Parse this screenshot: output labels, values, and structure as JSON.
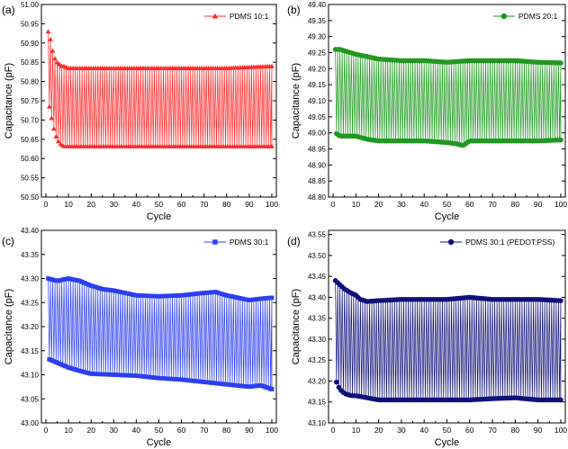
{
  "chart_data": [
    {
      "type": "line",
      "panel_label": "(a)",
      "title": "",
      "xlabel": "Cycle",
      "ylabel": "Capacitance (pF)",
      "xlim": [
        -2,
        102
      ],
      "ylim": [
        50.5,
        51.0
      ],
      "xticks": [
        "0",
        "10",
        "20",
        "30",
        "40",
        "50",
        "60",
        "70",
        "80",
        "90",
        "100"
      ],
      "yticks": [
        "50.50",
        "50.55",
        "50.60",
        "50.65",
        "50.70",
        "50.75",
        "50.80",
        "50.85",
        "50.90",
        "50.95",
        "51.00"
      ],
      "legend": "PDMS 10:1",
      "color": "#ff2a2a",
      "marker": "triangle",
      "series": [
        {
          "name": "peak (upper)",
          "x": [
            1,
            2,
            3,
            4,
            5,
            6,
            7,
            8,
            10,
            15,
            20,
            40,
            60,
            80,
            100
          ],
          "values": [
            50.93,
            50.91,
            50.88,
            50.86,
            50.85,
            50.845,
            50.84,
            50.84,
            50.835,
            50.835,
            50.835,
            50.835,
            50.835,
            50.835,
            50.84
          ]
        },
        {
          "name": "valley (lower)",
          "x": [
            1,
            2,
            3,
            4,
            5,
            6,
            7,
            8,
            10,
            15,
            20,
            40,
            60,
            80,
            100
          ],
          "values": [
            50.75,
            50.72,
            50.69,
            50.665,
            50.65,
            50.64,
            50.635,
            50.632,
            50.632,
            50.632,
            50.632,
            50.632,
            50.632,
            50.632,
            50.632
          ]
        }
      ]
    },
    {
      "type": "line",
      "panel_label": "(b)",
      "title": "",
      "xlabel": "Cycle",
      "ylabel": "Capacitance (pF)",
      "xlim": [
        -2,
        102
      ],
      "ylim": [
        48.8,
        49.4
      ],
      "xticks": [
        "0",
        "10",
        "20",
        "30",
        "40",
        "50",
        "60",
        "70",
        "80",
        "90",
        "100"
      ],
      "yticks": [
        "48.80",
        "48.85",
        "48.90",
        "48.95",
        "49.00",
        "49.05",
        "49.10",
        "49.15",
        "49.20",
        "49.25",
        "49.30",
        "49.35",
        "49.40"
      ],
      "legend": "PDMS 20:1",
      "color": "#1e9a1e",
      "marker": "circle",
      "series": [
        {
          "name": "peak (upper)",
          "x": [
            1,
            3,
            10,
            20,
            30,
            40,
            50,
            60,
            70,
            80,
            90,
            100
          ],
          "values": [
            49.26,
            49.26,
            49.245,
            49.23,
            49.225,
            49.225,
            49.22,
            49.225,
            49.225,
            49.225,
            49.22,
            49.218
          ]
        },
        {
          "name": "valley (lower)",
          "x": [
            1,
            3,
            10,
            15,
            20,
            30,
            40,
            50,
            55,
            57,
            60,
            70,
            80,
            90,
            100
          ],
          "values": [
            49.0,
            48.99,
            48.99,
            48.98,
            48.975,
            48.975,
            48.975,
            48.97,
            48.965,
            48.96,
            48.975,
            48.975,
            48.975,
            48.975,
            48.978
          ]
        }
      ]
    },
    {
      "type": "line",
      "panel_label": "(c)",
      "title": "",
      "xlabel": "Cycle",
      "ylabel": "Capacitance (pF)",
      "xlim": [
        -2,
        102
      ],
      "ylim": [
        43.0,
        43.4
      ],
      "xticks": [
        "0",
        "10",
        "20",
        "30",
        "40",
        "50",
        "60",
        "70",
        "80",
        "90",
        "100"
      ],
      "yticks": [
        "43.00",
        "43.05",
        "43.10",
        "43.15",
        "43.20",
        "43.25",
        "43.30",
        "43.35",
        "43.40"
      ],
      "legend": "PDMS 30:1",
      "color": "#2b3ff0",
      "marker": "square",
      "series": [
        {
          "name": "peak (upper)",
          "x": [
            1,
            5,
            10,
            15,
            20,
            25,
            30,
            40,
            50,
            60,
            70,
            75,
            80,
            90,
            95,
            100
          ],
          "values": [
            43.3,
            43.295,
            43.3,
            43.295,
            43.285,
            43.278,
            43.275,
            43.265,
            43.263,
            43.265,
            43.27,
            43.272,
            43.265,
            43.255,
            43.258,
            43.26
          ]
        },
        {
          "name": "valley (lower)",
          "x": [
            1,
            5,
            10,
            15,
            20,
            30,
            40,
            50,
            60,
            70,
            80,
            90,
            95,
            100
          ],
          "values": [
            43.133,
            43.125,
            43.115,
            43.108,
            43.102,
            43.1,
            43.098,
            43.093,
            43.09,
            43.085,
            43.08,
            43.075,
            43.078,
            43.07
          ]
        }
      ]
    },
    {
      "type": "line",
      "panel_label": "(d)",
      "title": "",
      "xlabel": "Cycle",
      "ylabel": "Capacitance (pF)",
      "xlim": [
        -2,
        102
      ],
      "ylim": [
        43.1,
        43.56
      ],
      "xticks": [
        "0",
        "10",
        "20",
        "30",
        "40",
        "50",
        "60",
        "70",
        "80",
        "90",
        "100"
      ],
      "yticks": [
        "43.10",
        "43.15",
        "43.20",
        "43.25",
        "43.30",
        "43.35",
        "43.40",
        "43.45",
        "43.50",
        "43.55"
      ],
      "legend": "PDMS 30:1 (PEDOT:PSS)",
      "color": "#10107a",
      "marker": "circle",
      "series": [
        {
          "name": "peak (upper)",
          "x": [
            1,
            2,
            3,
            5,
            8,
            10,
            12,
            15,
            20,
            30,
            40,
            50,
            60,
            70,
            80,
            90,
            100
          ],
          "values": [
            43.44,
            43.435,
            43.43,
            43.42,
            43.41,
            43.405,
            43.395,
            43.39,
            43.392,
            43.395,
            43.395,
            43.395,
            43.4,
            43.395,
            43.395,
            43.395,
            43.392
          ]
        },
        {
          "name": "valley (lower)",
          "x": [
            1,
            2,
            3,
            5,
            8,
            10,
            15,
            20,
            30,
            40,
            50,
            60,
            70,
            80,
            90,
            100
          ],
          "values": [
            43.205,
            43.19,
            43.18,
            43.17,
            43.165,
            43.165,
            43.16,
            43.155,
            43.155,
            43.155,
            43.155,
            43.155,
            43.158,
            43.16,
            43.155,
            43.155
          ]
        }
      ]
    }
  ]
}
